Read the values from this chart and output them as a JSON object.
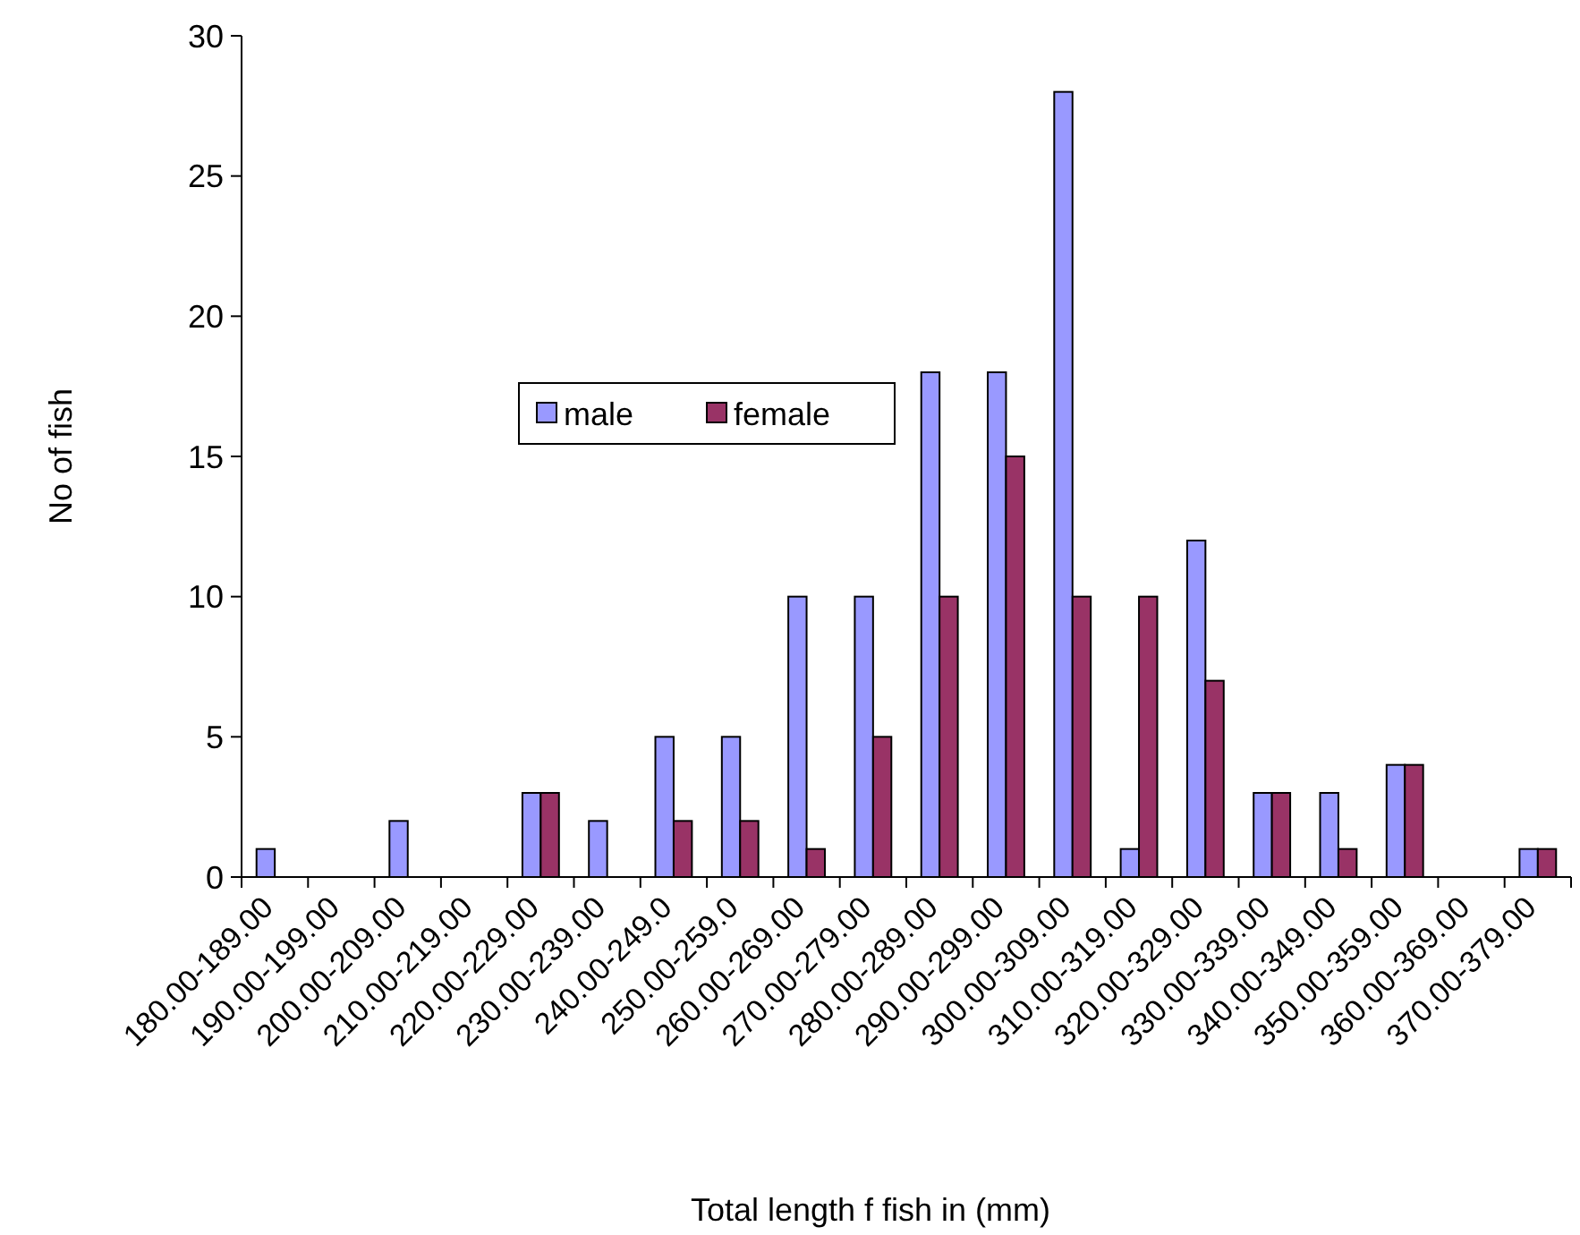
{
  "chart_data": {
    "type": "bar",
    "xlabel": "Total length f fish in (mm)",
    "ylabel": "No of fish",
    "categories": [
      "180.00-189.00",
      "190.00-199.00",
      "200.00-209.00",
      "210.00-219.00",
      "220.00-229.00",
      "230.00-239.00",
      "240.00-249.0",
      "250.00-259.0",
      "260.00-269.00",
      "270.00-279.00",
      "280.00-289.00",
      "290.00-299.00",
      "300.00-309.00",
      "310.00-319.00",
      "320.00-329.00",
      "330.00-339.00",
      "340.00-349.00",
      "350.00-359.00",
      "360.00-369.00",
      "370.00-379.00"
    ],
    "series": [
      {
        "name": "male",
        "color": "#9999ff",
        "values": [
          1,
          0,
          2,
          0,
          3,
          2,
          5,
          5,
          10,
          10,
          18,
          18,
          28,
          1,
          12,
          3,
          3,
          4,
          0,
          1
        ]
      },
      {
        "name": "female",
        "color": "#993366",
        "values": [
          0,
          0,
          0,
          0,
          3,
          0,
          2,
          2,
          1,
          5,
          10,
          15,
          10,
          10,
          7,
          3,
          1,
          4,
          0,
          1
        ]
      }
    ],
    "ylim": [
      0,
      30
    ],
    "yticks": [
      0,
      5,
      10,
      15,
      20,
      25,
      30
    ],
    "grid": false,
    "legend": "top"
  }
}
